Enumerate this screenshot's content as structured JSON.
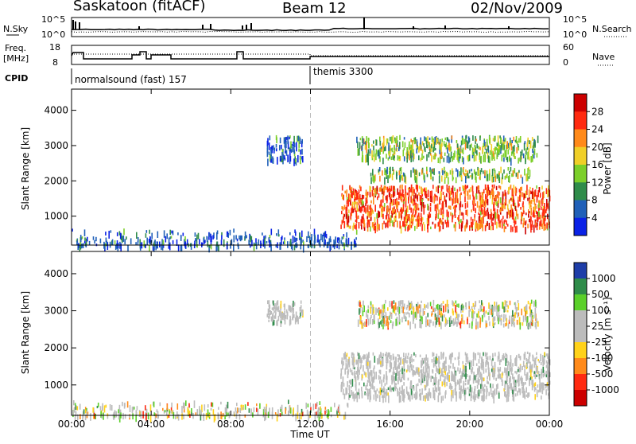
{
  "header": {
    "station": "Saskatoon (fitACF)",
    "beam": "Beam 12",
    "date": "02/Nov/2009"
  },
  "top_strip": {
    "left_label": "N.Sky",
    "right_label": "N.Search",
    "ticks_left": [
      "10^5",
      "10^0"
    ],
    "ticks_right": [
      "10^5",
      "10^0"
    ]
  },
  "freq_strip": {
    "left_label_line1": "Freq.",
    "left_label_line2": "[MHz]",
    "ticks_left": [
      "18",
      "8"
    ],
    "right_label": "Nave",
    "ticks_right": [
      "60",
      "0"
    ]
  },
  "cpid": {
    "label": "CPID",
    "segments": [
      {
        "start_hr": 0,
        "text": "normalsound (fast) 157"
      },
      {
        "start_hr": 12,
        "text": "themis 3300"
      }
    ]
  },
  "chart_data": [
    {
      "type": "heatmap",
      "panel": "power",
      "ylabel": "Slant Range [km]",
      "ylim": [
        180,
        4600
      ],
      "yticks": [
        1000,
        2000,
        3000,
        4000
      ],
      "xlim": [
        0,
        24
      ],
      "colorbar": {
        "label": "Power [dB]",
        "ticks": [
          "4",
          "8",
          "12",
          "16",
          "20",
          "24",
          "28"
        ],
        "colors": [
          "#0a22e6",
          "#2060b8",
          "#2f8c4a",
          "#7ccf2a",
          "#f0cf28",
          "#ff8a1a",
          "#ff2a10",
          "#cc0000"
        ]
      },
      "echo_regions": [
        {
          "t0": 0.0,
          "t1": 14.3,
          "r0": 180,
          "r1": 650,
          "intensity": "low"
        },
        {
          "t0": 9.8,
          "t1": 11.6,
          "r0": 2600,
          "r1": 3300,
          "intensity": "low"
        },
        {
          "t0": 13.5,
          "t1": 24.0,
          "r0": 700,
          "r1": 1900,
          "intensity": "high"
        },
        {
          "t0": 14.3,
          "t1": 23.4,
          "r0": 2650,
          "r1": 3300,
          "intensity": "medium"
        },
        {
          "t0": 15.0,
          "t1": 23.0,
          "r0": 2100,
          "r1": 2400,
          "intensity": "medium"
        }
      ]
    },
    {
      "type": "heatmap",
      "panel": "velocity",
      "ylabel": "Slant Range [km]",
      "xlabel": "Time UT",
      "ylim": [
        180,
        4600
      ],
      "yticks": [
        1000,
        2000,
        3000,
        4000
      ],
      "xlim": [
        0,
        24
      ],
      "xticks": [
        "00:00",
        "04:00",
        "08:00",
        "12:00",
        "16:00",
        "20:00",
        "00:00"
      ],
      "colorbar": {
        "label": "Velocity [m s⁻¹]",
        "ticks": [
          "1000",
          "500",
          "100",
          "25",
          "-25",
          "-100",
          "-500",
          "-1000"
        ],
        "colors": [
          "#1e3ea8",
          "#2f8c4a",
          "#5bd02a",
          "#bcbcbc",
          "#bcbcbc",
          "#ffd21a",
          "#ff8a1a",
          "#ff2a10",
          "#cc0000"
        ]
      },
      "echo_regions": [
        {
          "t0": 0.0,
          "t1": 14.3,
          "r0": 180,
          "r1": 600,
          "intensity": "mixed"
        },
        {
          "t0": 9.8,
          "t1": 11.6,
          "r0": 2700,
          "r1": 3300,
          "intensity": "ground"
        },
        {
          "t0": 13.5,
          "t1": 24.0,
          "r0": 700,
          "r1": 1900,
          "intensity": "ground"
        },
        {
          "t0": 14.3,
          "t1": 23.4,
          "r0": 2650,
          "r1": 3300,
          "intensity": "mixed"
        }
      ]
    }
  ]
}
